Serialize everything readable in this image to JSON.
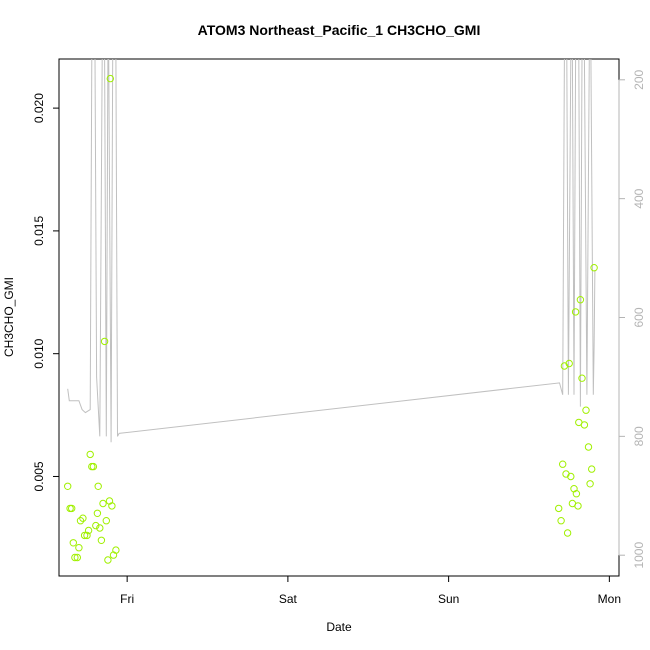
{
  "chart_data": {
    "type": "scatter",
    "title": "ATOM3 Northeast_Pacific_1 CH3CHO_GMI",
    "xlabel": "Date",
    "ylabel": "CH3CHO_GMI",
    "x_ticks": [
      "Fri",
      "Sat",
      "Sun",
      "Mon"
    ],
    "xlim": [
      -0.424,
      3.06
    ],
    "ylim": [
      0.000947,
      0.022
    ],
    "y_ticks": [
      0.005,
      0.01,
      0.015,
      0.02
    ],
    "y_tick_labels": [
      "0.005",
      "0.010",
      "0.015",
      "0.020"
    ],
    "y2lim": [
      1035,
      165
    ],
    "y2_ticks": [
      200,
      400,
      600,
      800,
      1000
    ],
    "y2_tick_labels": [
      "200",
      "400",
      "600",
      "800",
      "1000"
    ],
    "grid": false,
    "colors": {
      "points": "#a0f000",
      "pressure_line": "#c0c0c0",
      "right_axis": "#b4b4b4",
      "axis": "#000000"
    },
    "series": [
      {
        "kind": "points",
        "points": [
          [
            -0.37,
            0.0046
          ],
          [
            -0.355,
            0.0037
          ],
          [
            -0.345,
            0.0037
          ],
          [
            -0.335,
            0.0023
          ],
          [
            -0.325,
            0.0017
          ],
          [
            -0.31,
            0.0017
          ],
          [
            -0.3,
            0.0021
          ],
          [
            -0.29,
            0.0032
          ],
          [
            -0.275,
            0.0033
          ],
          [
            -0.265,
            0.0026
          ],
          [
            -0.25,
            0.0026
          ],
          [
            -0.24,
            0.0028
          ],
          [
            -0.23,
            0.0059
          ],
          [
            -0.22,
            0.0054
          ],
          [
            -0.21,
            0.0054
          ],
          [
            -0.195,
            0.003
          ],
          [
            -0.185,
            0.0035
          ],
          [
            -0.18,
            0.0046
          ],
          [
            -0.17,
            0.0029
          ],
          [
            -0.16,
            0.0024
          ],
          [
            -0.15,
            0.0039
          ],
          [
            -0.14,
            0.0105
          ],
          [
            -0.13,
            0.0032
          ],
          [
            -0.12,
            0.0016
          ],
          [
            -0.11,
            0.004
          ],
          [
            -0.105,
            0.0212
          ],
          [
            -0.095,
            0.0038
          ],
          [
            -0.085,
            0.0018
          ],
          [
            -0.07,
            0.002
          ],
          [
            2.685,
            0.0037
          ],
          [
            2.7,
            0.0032
          ],
          [
            2.71,
            0.0055
          ],
          [
            2.72,
            0.0095
          ],
          [
            2.73,
            0.0051
          ],
          [
            2.74,
            0.0027
          ],
          [
            2.75,
            0.0096
          ],
          [
            2.76,
            0.005
          ],
          [
            2.77,
            0.0039
          ],
          [
            2.78,
            0.0045
          ],
          [
            2.79,
            0.0117
          ],
          [
            2.795,
            0.0043
          ],
          [
            2.805,
            0.0038
          ],
          [
            2.81,
            0.0072
          ],
          [
            2.82,
            0.0122
          ],
          [
            2.83,
            0.009
          ],
          [
            2.845,
            0.0071
          ],
          [
            2.855,
            0.0077
          ],
          [
            2.87,
            0.0062
          ],
          [
            2.88,
            0.0047
          ],
          [
            2.89,
            0.0053
          ],
          [
            2.905,
            0.0135
          ]
        ]
      },
      {
        "kind": "pressure_line",
        "points": [
          [
            -0.37,
            720
          ],
          [
            -0.36,
            740
          ],
          [
            -0.35,
            740
          ],
          [
            -0.3,
            740
          ],
          [
            -0.28,
            755
          ],
          [
            -0.26,
            760
          ],
          [
            -0.23,
            755
          ],
          [
            -0.22,
            160
          ],
          [
            -0.2,
            160
          ],
          [
            -0.19,
            700
          ],
          [
            -0.17,
            800
          ],
          [
            -0.155,
            160
          ],
          [
            -0.14,
            160
          ],
          [
            -0.13,
            800
          ],
          [
            -0.12,
            160
          ],
          [
            -0.115,
            160
          ],
          [
            -0.1,
            810
          ],
          [
            -0.09,
            160
          ],
          [
            -0.07,
            160
          ],
          [
            -0.06,
            800
          ],
          [
            -0.05,
            795
          ],
          [
            2.69,
            710
          ],
          [
            2.71,
            730
          ],
          [
            2.72,
            160
          ],
          [
            2.735,
            160
          ],
          [
            2.745,
            730
          ],
          [
            2.76,
            160
          ],
          [
            2.77,
            160
          ],
          [
            2.78,
            730
          ],
          [
            2.79,
            160
          ],
          [
            2.81,
            160
          ],
          [
            2.82,
            750
          ],
          [
            2.83,
            160
          ],
          [
            2.845,
            160
          ],
          [
            2.86,
            730
          ],
          [
            2.875,
            160
          ],
          [
            2.885,
            160
          ],
          [
            2.9,
            730
          ],
          [
            2.905,
            650
          ],
          [
            2.91,
            520
          ]
        ]
      }
    ]
  }
}
